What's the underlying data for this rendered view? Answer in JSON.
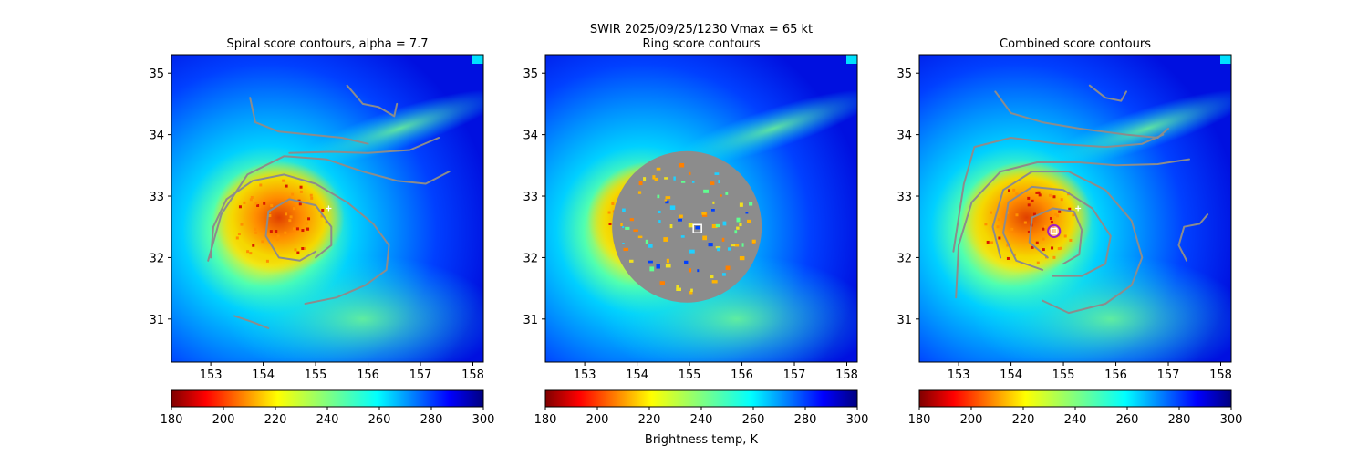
{
  "figure": {
    "suptitle_line1": "SWIR  2025/09/25/1230    Vmax = 65 kt",
    "colorbar_label": "Brightness temp, K"
  },
  "chart_data": [
    {
      "type": "heatmap",
      "title": "Spiral score contours, alpha =  7.7",
      "xlim": [
        152.25,
        158.2
      ],
      "ylim": [
        30.3,
        35.3
      ],
      "xticks": [
        153,
        154,
        155,
        156,
        157,
        158
      ],
      "yticks": [
        31,
        32,
        33,
        34,
        35
      ],
      "colorbar": {
        "min": 180,
        "max": 300,
        "ticks": [
          180,
          200,
          220,
          240,
          260,
          280,
          300
        ],
        "colormap": "jet_r"
      },
      "center_marker": {
        "shape": "plus",
        "x": 155.25,
        "y": 32.8
      },
      "contours": [
        [
          [
            155.0,
            32.1
          ],
          [
            154.7,
            31.95
          ],
          [
            154.3,
            32.0
          ],
          [
            154.05,
            32.35
          ],
          [
            154.1,
            32.75
          ],
          [
            154.5,
            32.95
          ],
          [
            155.0,
            32.85
          ],
          [
            155.3,
            32.5
          ],
          [
            155.3,
            32.2
          ],
          [
            155.0,
            32.0
          ]
        ],
        [
          [
            153.0,
            32.0
          ],
          [
            153.05,
            32.5
          ],
          [
            153.3,
            32.95
          ],
          [
            153.8,
            33.25
          ],
          [
            154.4,
            33.35
          ],
          [
            155.0,
            33.2
          ],
          [
            155.6,
            32.9
          ],
          [
            156.1,
            32.55
          ],
          [
            156.4,
            32.2
          ],
          [
            156.35,
            31.8
          ],
          [
            155.95,
            31.55
          ],
          [
            155.4,
            31.35
          ],
          [
            154.8,
            31.25
          ]
        ],
        [
          [
            152.95,
            31.95
          ],
          [
            153.2,
            32.7
          ],
          [
            153.7,
            33.35
          ],
          [
            154.4,
            33.65
          ],
          [
            155.2,
            33.6
          ],
          [
            155.9,
            33.4
          ],
          [
            156.55,
            33.25
          ],
          [
            157.1,
            33.2
          ],
          [
            157.55,
            33.4
          ]
        ],
        [
          [
            154.5,
            33.7
          ],
          [
            155.3,
            33.72
          ],
          [
            156.0,
            33.7
          ],
          [
            156.8,
            33.75
          ],
          [
            157.35,
            33.95
          ]
        ],
        [
          [
            153.75,
            34.6
          ],
          [
            153.85,
            34.2
          ],
          [
            154.3,
            34.05
          ],
          [
            154.9,
            34.0
          ],
          [
            155.5,
            33.95
          ],
          [
            156.0,
            33.85
          ]
        ],
        [
          [
            155.6,
            34.8
          ],
          [
            155.9,
            34.5
          ],
          [
            156.2,
            34.45
          ],
          [
            156.5,
            34.3
          ],
          [
            156.55,
            34.5
          ]
        ],
        [
          [
            153.45,
            31.05
          ],
          [
            153.8,
            30.95
          ],
          [
            154.1,
            30.85
          ]
        ]
      ]
    },
    {
      "type": "heatmap",
      "title": "Ring score contours",
      "xlim": [
        152.25,
        158.2
      ],
      "ylim": [
        30.3,
        35.3
      ],
      "xticks": [
        153,
        154,
        155,
        156,
        157,
        158
      ],
      "yticks": [
        31,
        32,
        33,
        34,
        35
      ],
      "colorbar": {
        "min": 180,
        "max": 300,
        "ticks": [
          180,
          200,
          220,
          240,
          260,
          280,
          300
        ],
        "colormap": "jet_r"
      },
      "center_marker": {
        "shape": "square",
        "x": 155.15,
        "y": 32.47
      }
    },
    {
      "type": "heatmap",
      "title": "Combined score contours",
      "xlim": [
        152.25,
        158.2
      ],
      "ylim": [
        30.3,
        35.3
      ],
      "xticks": [
        153,
        154,
        155,
        156,
        157,
        158
      ],
      "yticks": [
        31,
        32,
        33,
        34,
        35
      ],
      "colorbar": {
        "min": 180,
        "max": 300,
        "ticks": [
          180,
          200,
          220,
          240,
          260,
          280,
          300
        ],
        "colormap": "jet_r"
      },
      "center_marker": {
        "shape": "circle",
        "x": 154.82,
        "y": 32.43
      },
      "plus_marker": {
        "x": 155.28,
        "y": 32.8
      },
      "contours": [
        [
          [
            154.7,
            32.0
          ],
          [
            154.35,
            32.25
          ],
          [
            154.4,
            32.65
          ],
          [
            154.8,
            32.8
          ],
          [
            155.2,
            32.75
          ],
          [
            155.35,
            32.45
          ],
          [
            155.3,
            32.05
          ],
          [
            155.0,
            31.9
          ]
        ],
        [
          [
            154.6,
            31.8
          ],
          [
            154.1,
            31.95
          ],
          [
            153.85,
            32.4
          ],
          [
            153.95,
            32.9
          ],
          [
            154.4,
            33.15
          ],
          [
            155.0,
            33.1
          ],
          [
            155.55,
            32.8
          ],
          [
            155.9,
            32.35
          ],
          [
            155.8,
            31.9
          ],
          [
            155.35,
            31.7
          ],
          [
            154.8,
            31.7
          ]
        ],
        [
          [
            153.8,
            32.0
          ],
          [
            153.65,
            32.5
          ],
          [
            153.85,
            33.1
          ],
          [
            154.4,
            33.4
          ],
          [
            155.1,
            33.4
          ],
          [
            155.8,
            33.1
          ],
          [
            156.3,
            32.6
          ],
          [
            156.5,
            32.0
          ],
          [
            156.3,
            31.55
          ],
          [
            155.8,
            31.25
          ],
          [
            155.1,
            31.1
          ],
          [
            154.6,
            31.3
          ]
        ],
        [
          [
            152.95,
            31.35
          ],
          [
            153.0,
            32.2
          ],
          [
            153.25,
            32.9
          ],
          [
            153.8,
            33.4
          ],
          [
            154.5,
            33.55
          ],
          [
            155.3,
            33.55
          ],
          [
            156.0,
            33.5
          ],
          [
            156.8,
            33.52
          ],
          [
            157.4,
            33.6
          ]
        ],
        [
          [
            152.9,
            32.1
          ],
          [
            153.1,
            33.2
          ],
          [
            153.3,
            33.8
          ],
          [
            154.0,
            33.95
          ],
          [
            154.9,
            33.85
          ],
          [
            155.8,
            33.8
          ],
          [
            156.5,
            33.85
          ],
          [
            156.9,
            34.0
          ]
        ],
        [
          [
            153.7,
            34.7
          ],
          [
            154.0,
            34.35
          ],
          [
            154.6,
            34.2
          ],
          [
            155.3,
            34.1
          ],
          [
            156.2,
            34.0
          ],
          [
            156.8,
            33.95
          ],
          [
            157.0,
            34.1
          ]
        ],
        [
          [
            155.5,
            34.8
          ],
          [
            155.8,
            34.6
          ],
          [
            156.1,
            34.55
          ],
          [
            156.2,
            34.7
          ]
        ],
        [
          [
            157.35,
            31.95
          ],
          [
            157.2,
            32.2
          ],
          [
            157.3,
            32.5
          ],
          [
            157.6,
            32.55
          ],
          [
            157.75,
            32.7
          ]
        ]
      ]
    }
  ]
}
